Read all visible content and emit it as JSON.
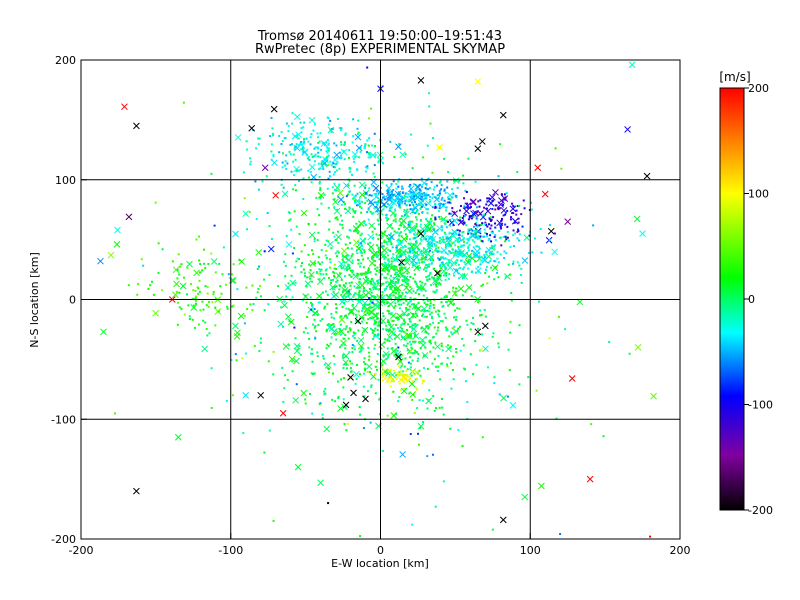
{
  "chart_data": {
    "type": "scatter",
    "title": "Tromsø 20140611 19:50:00–19:51:43",
    "subtitle": "RwPretec (8p) EXPERIMENTAL SKYMAP",
    "xlabel": "E-W location [km]",
    "ylabel": "N-S location [km]",
    "xlim": [
      -200,
      200
    ],
    "ylim": [
      -200,
      200
    ],
    "xticks": [
      -200,
      -100,
      0,
      100,
      200
    ],
    "yticks": [
      -200,
      -100,
      0,
      100,
      200
    ],
    "grid": true,
    "colorbar": {
      "label": "[m/s]",
      "range": [
        -200,
        200
      ],
      "ticks": [
        200,
        100,
        0,
        -100,
        -200
      ],
      "colormap": "rainbow (black → purple → blue → cyan → green → yellow → red)"
    },
    "marker_types": [
      "small dot",
      "x cross"
    ],
    "sample_points": [
      {
        "x": -163,
        "y": 145,
        "v": -200,
        "m": "x"
      },
      {
        "x": -171,
        "y": 161,
        "v": 200,
        "m": "x"
      },
      {
        "x": -168,
        "y": 69,
        "v": -170,
        "m": "x"
      },
      {
        "x": -187,
        "y": 32,
        "v": -60,
        "m": "x"
      },
      {
        "x": -176,
        "y": 46,
        "v": 20,
        "m": "x"
      },
      {
        "x": -180,
        "y": 37,
        "v": 60,
        "m": "x"
      },
      {
        "x": -185,
        "y": -27,
        "v": 10,
        "m": "x"
      },
      {
        "x": -139,
        "y": 0,
        "v": 200,
        "m": "x"
      },
      {
        "x": -135,
        "y": -115,
        "v": 10,
        "m": "x"
      },
      {
        "x": -163,
        "y": -160,
        "v": -200,
        "m": "x"
      },
      {
        "x": -86,
        "y": 143,
        "v": -200,
        "m": "x"
      },
      {
        "x": -71,
        "y": 159,
        "v": -200,
        "m": "x"
      },
      {
        "x": -77,
        "y": 110,
        "v": -140,
        "m": "x"
      },
      {
        "x": -70,
        "y": 87,
        "v": 200,
        "m": "x"
      },
      {
        "x": -80,
        "y": -80,
        "v": -200,
        "m": "x"
      },
      {
        "x": -90,
        "y": -80,
        "v": -40,
        "m": "x"
      },
      {
        "x": -65,
        "y": -95,
        "v": 200,
        "m": "x"
      },
      {
        "x": -55,
        "y": -140,
        "v": 10,
        "m": "x"
      },
      {
        "x": -40,
        "y": -153,
        "v": 0,
        "m": "x"
      },
      {
        "x": -35,
        "y": -170,
        "v": -200,
        "m": "d"
      },
      {
        "x": 0,
        "y": 176,
        "v": -100,
        "m": "x"
      },
      {
        "x": 27,
        "y": 183,
        "v": -200,
        "m": "x"
      },
      {
        "x": 65,
        "y": 126,
        "v": -200,
        "m": "x"
      },
      {
        "x": 68,
        "y": 132,
        "v": -200,
        "m": "x"
      },
      {
        "x": 82,
        "y": 154,
        "v": -200,
        "m": "x"
      },
      {
        "x": 65,
        "y": 182,
        "v": 100,
        "m": "x"
      },
      {
        "x": 165,
        "y": 142,
        "v": -100,
        "m": "x"
      },
      {
        "x": 178,
        "y": 103,
        "v": -200,
        "m": "x"
      },
      {
        "x": 105,
        "y": 110,
        "v": 200,
        "m": "x"
      },
      {
        "x": 114,
        "y": 57,
        "v": -200,
        "m": "x"
      },
      {
        "x": 110,
        "y": 88,
        "v": 200,
        "m": "x"
      },
      {
        "x": 125,
        "y": 65,
        "v": -150,
        "m": "x"
      },
      {
        "x": 27,
        "y": 55,
        "v": -200,
        "m": "x"
      },
      {
        "x": 38,
        "y": 22,
        "v": -200,
        "m": "x"
      },
      {
        "x": 14,
        "y": 31,
        "v": -200,
        "m": "x"
      },
      {
        "x": 70,
        "y": -22,
        "v": -200,
        "m": "x"
      },
      {
        "x": 65,
        "y": -27,
        "v": -200,
        "m": "x"
      },
      {
        "x": -15,
        "y": -18,
        "v": -200,
        "m": "x"
      },
      {
        "x": -20,
        "y": -65,
        "v": -200,
        "m": "x"
      },
      {
        "x": -18,
        "y": -78,
        "v": -200,
        "m": "x"
      },
      {
        "x": -23,
        "y": -88,
        "v": -200,
        "m": "x"
      },
      {
        "x": -10,
        "y": -83,
        "v": -200,
        "m": "x"
      },
      {
        "x": 12,
        "y": -48,
        "v": -200,
        "m": "x"
      },
      {
        "x": 82,
        "y": -184,
        "v": -200,
        "m": "x"
      },
      {
        "x": 140,
        "y": -150,
        "v": 200,
        "m": "x"
      },
      {
        "x": 128,
        "y": -66,
        "v": 200,
        "m": "x"
      },
      {
        "x": 172,
        "y": -40,
        "v": 60,
        "m": "x"
      },
      {
        "x": 175,
        "y": 55,
        "v": -30,
        "m": "x"
      },
      {
        "x": 168,
        "y": 196,
        "v": -20,
        "m": "x"
      },
      {
        "x": 180,
        "y": -198,
        "v": 200,
        "m": "d"
      }
    ]
  }
}
